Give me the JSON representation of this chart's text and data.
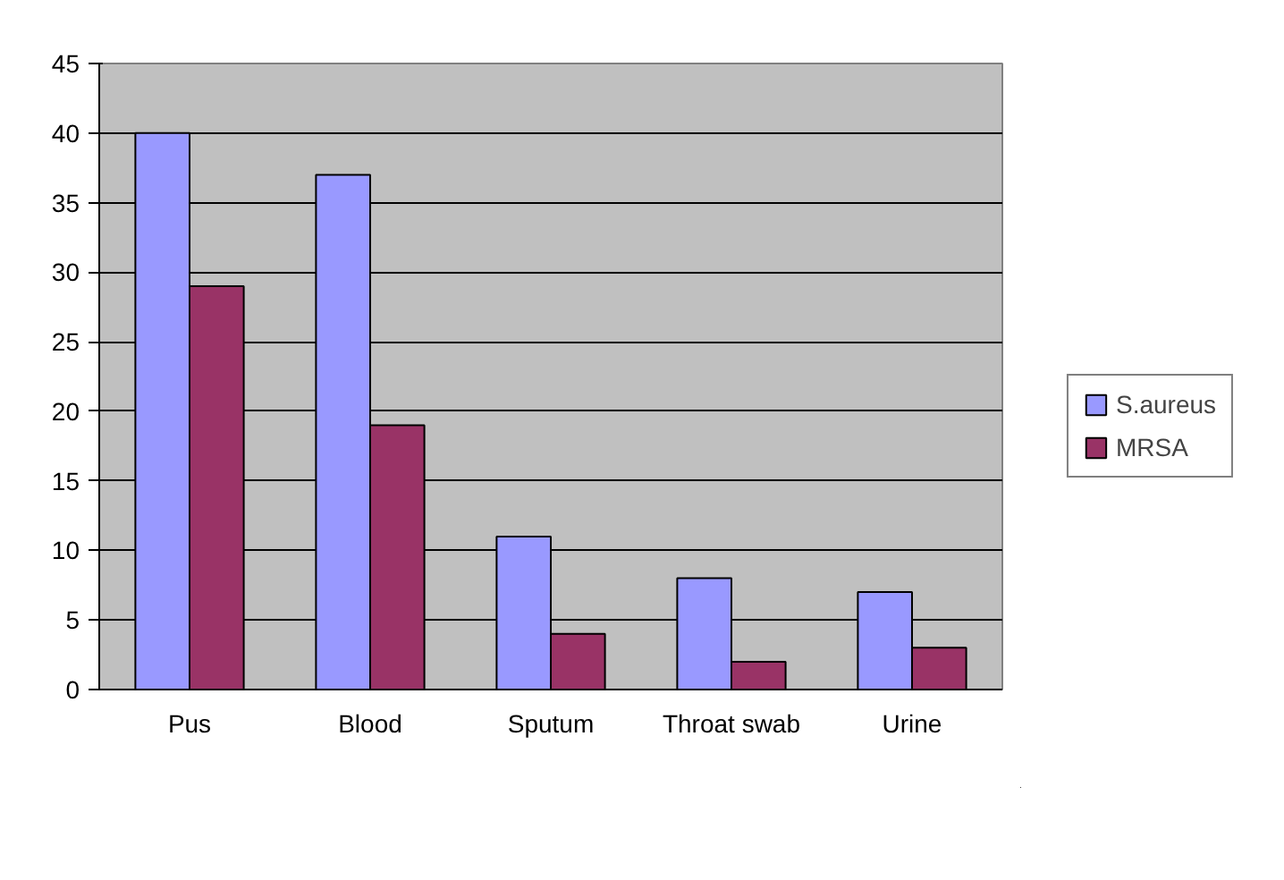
{
  "chart_data": {
    "type": "bar",
    "categories": [
      "Pus",
      "Blood",
      "Sputum",
      "Throat swab",
      "Urine"
    ],
    "series": [
      {
        "name": "S.aureus",
        "color": "#9999ff",
        "values": [
          40,
          37,
          11,
          8,
          7
        ]
      },
      {
        "name": "MRSA",
        "color": "#993366",
        "values": [
          29,
          19,
          4,
          2,
          3
        ]
      }
    ],
    "ylim": [
      0,
      45
    ],
    "yticks": [
      0,
      5,
      10,
      15,
      20,
      25,
      30,
      35,
      40,
      45
    ],
    "grid": "y",
    "legend": "right"
  }
}
